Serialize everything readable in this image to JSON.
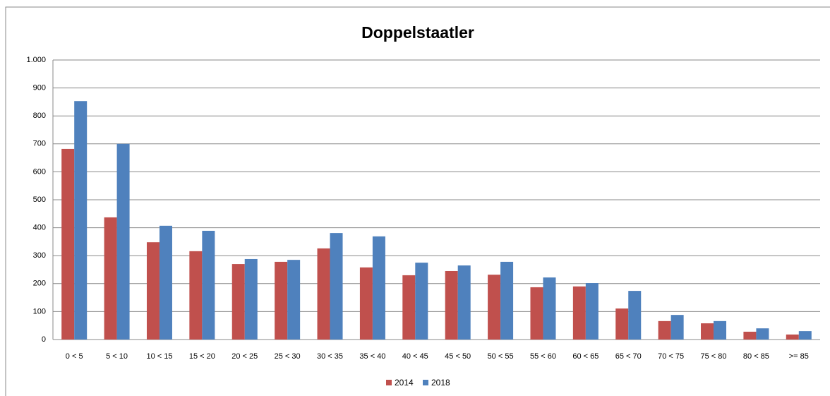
{
  "chart_data": {
    "type": "bar",
    "title": "Doppelstaatler",
    "categories": [
      "0 < 5",
      "5 < 10",
      "10 < 15",
      "15 < 20",
      "20 < 25",
      "25 < 30",
      "30 < 35",
      "35 < 40",
      "40 < 45",
      "45 < 50",
      "50 < 55",
      "55 < 60",
      "60 < 65",
      "65 < 70",
      "70 < 75",
      "75 < 80",
      "80 < 85",
      ">= 85"
    ],
    "series": [
      {
        "name": "2014",
        "color": "#c0504d",
        "values": [
          682,
          437,
          348,
          316,
          270,
          278,
          326,
          258,
          230,
          245,
          232,
          187,
          190,
          111,
          66,
          58,
          28,
          18
        ]
      },
      {
        "name": "2018",
        "color": "#4f81bd",
        "values": [
          853,
          700,
          407,
          389,
          288,
          285,
          381,
          369,
          275,
          265,
          278,
          222,
          202,
          174,
          88,
          66,
          40,
          30
        ]
      }
    ],
    "ylim": [
      0,
      1000
    ],
    "yticks": [
      0,
      100,
      200,
      300,
      400,
      500,
      600,
      700,
      800,
      900,
      {
        "value": 1000,
        "label": "1.000"
      }
    ],
    "grid": true,
    "legend": "bottom"
  }
}
